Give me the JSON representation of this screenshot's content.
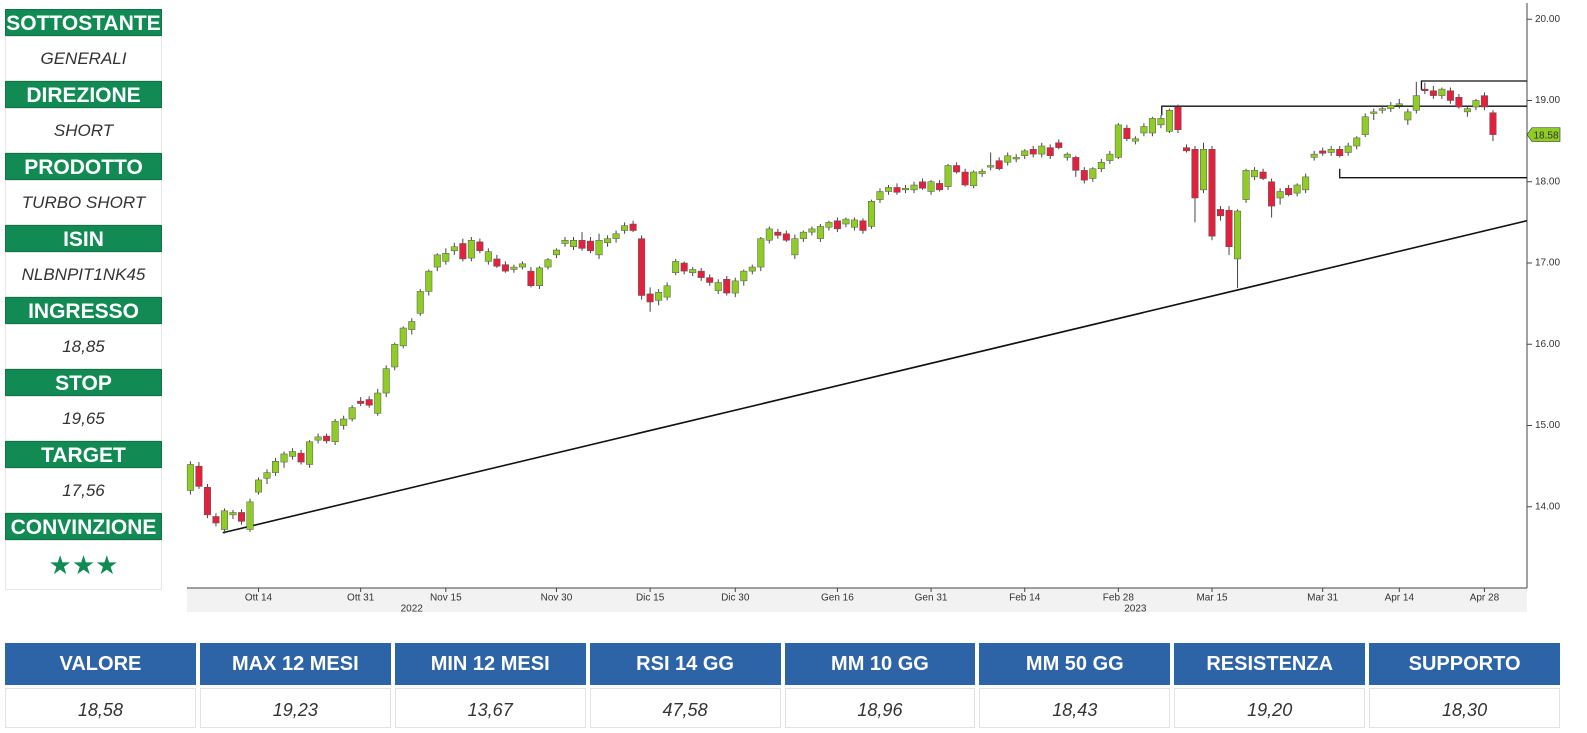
{
  "sidebar": [
    {
      "label": "SOTTOSTANTE",
      "value": "GENERALI"
    },
    {
      "label": "DIREZIONE",
      "value": "SHORT"
    },
    {
      "label": "PRODOTTO",
      "value": "TURBO SHORT"
    },
    {
      "label": "ISIN",
      "value": "NLBNPIT1NK45"
    },
    {
      "label": "INGRESSO",
      "value": "18,85"
    },
    {
      "label": "STOP",
      "value": "19,65"
    },
    {
      "label": "TARGET",
      "value": "17,56"
    },
    {
      "label": "CONVINZIONE",
      "value": "★★★"
    }
  ],
  "chart_data": {
    "type": "candlestick",
    "categories": [
      null,
      null,
      null,
      null,
      null,
      null,
      null,
      null,
      "Ott 14",
      null,
      null,
      null,
      null,
      null,
      null,
      null,
      null,
      null,
      null,
      null,
      "Ott 31",
      null,
      null,
      null,
      null,
      null,
      null,
      null,
      null,
      null,
      "Nov 15",
      null,
      null,
      null,
      null,
      null,
      null,
      null,
      null,
      null,
      null,
      null,
      null,
      "Nov 30",
      null,
      null,
      null,
      null,
      null,
      null,
      null,
      null,
      null,
      null,
      "Dic 15",
      null,
      null,
      null,
      null,
      null,
      null,
      null,
      null,
      null,
      "Dic 30",
      null,
      null,
      null,
      null,
      null,
      null,
      null,
      null,
      null,
      null,
      null,
      "Gen 16",
      null,
      null,
      null,
      null,
      null,
      null,
      null,
      null,
      null,
      null,
      "Gen 31",
      null,
      null,
      null,
      null,
      null,
      null,
      null,
      null,
      null,
      null,
      "Feb 14",
      null,
      null,
      null,
      null,
      null,
      null,
      null,
      null,
      null,
      null,
      "Feb 28",
      null,
      null,
      null,
      null,
      null,
      null,
      null,
      null,
      null,
      null,
      "Mar 15",
      null,
      null,
      null,
      null,
      null,
      null,
      null,
      null,
      null,
      null,
      null,
      null,
      "Mar 31",
      null,
      null,
      null,
      null,
      null,
      null,
      null,
      null,
      "Apr 14",
      null,
      null,
      null,
      null,
      null,
      null,
      null,
      null,
      null,
      "Apr 28",
      null
    ],
    "ohlc": [
      [
        14.2,
        14.56,
        14.15,
        14.52
      ],
      [
        14.5,
        14.55,
        14.22,
        14.25
      ],
      [
        14.24,
        14.28,
        13.86,
        13.9
      ],
      [
        13.88,
        13.92,
        13.76,
        13.8
      ],
      [
        13.72,
        13.98,
        13.67,
        13.95
      ],
      [
        13.9,
        13.96,
        13.85,
        13.93
      ],
      [
        13.93,
        13.97,
        13.78,
        13.82
      ],
      [
        13.72,
        14.1,
        13.69,
        14.06
      ],
      [
        14.18,
        14.36,
        14.15,
        14.33
      ],
      [
        14.35,
        14.46,
        14.28,
        14.42
      ],
      [
        14.42,
        14.6,
        14.38,
        14.56
      ],
      [
        14.55,
        14.68,
        14.48,
        14.65
      ],
      [
        14.62,
        14.72,
        14.58,
        14.68
      ],
      [
        14.66,
        14.7,
        14.52,
        14.55
      ],
      [
        14.52,
        14.82,
        14.48,
        14.8
      ],
      [
        14.82,
        14.9,
        14.78,
        14.86
      ],
      [
        14.87,
        14.9,
        14.78,
        14.81
      ],
      [
        14.8,
        15.08,
        14.76,
        15.05
      ],
      [
        15.0,
        15.12,
        14.95,
        15.08
      ],
      [
        15.08,
        15.25,
        15.05,
        15.22
      ],
      [
        15.3,
        15.35,
        15.24,
        15.27
      ],
      [
        15.32,
        15.36,
        15.22,
        15.25
      ],
      [
        15.15,
        15.45,
        15.12,
        15.4
      ],
      [
        15.4,
        15.74,
        15.35,
        15.7
      ],
      [
        15.72,
        16.02,
        15.68,
        16.0
      ],
      [
        15.98,
        16.22,
        15.95,
        16.2
      ],
      [
        16.18,
        16.32,
        16.12,
        16.28
      ],
      [
        16.38,
        16.68,
        16.35,
        16.65
      ],
      [
        16.65,
        16.92,
        16.6,
        16.9
      ],
      [
        16.95,
        17.12,
        16.9,
        17.1
      ],
      [
        17.02,
        17.18,
        16.98,
        17.12
      ],
      [
        17.15,
        17.25,
        17.1,
        17.2
      ],
      [
        17.24,
        17.3,
        17.02,
        17.05
      ],
      [
        17.06,
        17.32,
        17.02,
        17.28
      ],
      [
        17.26,
        17.3,
        17.12,
        17.15
      ],
      [
        17.02,
        17.18,
        16.98,
        17.14
      ],
      [
        17.05,
        17.1,
        16.94,
        16.96
      ],
      [
        16.98,
        17.02,
        16.88,
        16.9
      ],
      [
        16.92,
        16.98,
        16.88,
        16.95
      ],
      [
        16.95,
        17.02,
        16.92,
        16.99
      ],
      [
        16.9,
        16.95,
        16.7,
        16.72
      ],
      [
        16.72,
        16.96,
        16.68,
        16.94
      ],
      [
        16.95,
        17.06,
        16.92,
        17.04
      ],
      [
        17.1,
        17.18,
        17.06,
        17.16
      ],
      [
        17.24,
        17.32,
        17.2,
        17.28
      ],
      [
        17.2,
        17.32,
        17.16,
        17.28
      ],
      [
        17.28,
        17.38,
        17.15,
        17.18
      ],
      [
        17.27,
        17.32,
        17.12,
        17.15
      ],
      [
        17.1,
        17.36,
        17.05,
        17.28
      ],
      [
        17.25,
        17.34,
        17.2,
        17.3
      ],
      [
        17.3,
        17.4,
        17.25,
        17.36
      ],
      [
        17.4,
        17.5,
        17.36,
        17.46
      ],
      [
        17.48,
        17.52,
        17.38,
        17.4
      ],
      [
        17.3,
        17.34,
        16.55,
        16.6
      ],
      [
        16.62,
        16.7,
        16.4,
        16.52
      ],
      [
        16.54,
        16.68,
        16.48,
        16.64
      ],
      [
        16.58,
        16.76,
        16.54,
        16.72
      ],
      [
        16.88,
        17.05,
        16.85,
        17.02
      ],
      [
        17.0,
        17.02,
        16.86,
        16.9
      ],
      [
        16.88,
        16.95,
        16.84,
        16.92
      ],
      [
        16.9,
        16.94,
        16.78,
        16.82
      ],
      [
        16.82,
        16.86,
        16.72,
        16.76
      ],
      [
        16.66,
        16.8,
        16.62,
        16.76
      ],
      [
        16.8,
        16.84,
        16.6,
        16.63
      ],
      [
        16.63,
        16.82,
        16.58,
        16.78
      ],
      [
        16.78,
        16.92,
        16.72,
        16.9
      ],
      [
        16.9,
        16.98,
        16.86,
        16.95
      ],
      [
        16.95,
        17.32,
        16.9,
        17.3
      ],
      [
        17.28,
        17.45,
        17.24,
        17.42
      ],
      [
        17.38,
        17.42,
        17.3,
        17.34
      ],
      [
        17.36,
        17.4,
        17.26,
        17.28
      ],
      [
        17.1,
        17.35,
        17.05,
        17.3
      ],
      [
        17.3,
        17.4,
        17.26,
        17.38
      ],
      [
        17.38,
        17.45,
        17.34,
        17.42
      ],
      [
        17.3,
        17.48,
        17.26,
        17.45
      ],
      [
        17.44,
        17.52,
        17.4,
        17.5
      ],
      [
        17.52,
        17.56,
        17.38,
        17.42
      ],
      [
        17.48,
        17.56,
        17.44,
        17.54
      ],
      [
        17.44,
        17.56,
        17.4,
        17.53
      ],
      [
        17.52,
        17.55,
        17.36,
        17.4
      ],
      [
        17.45,
        17.78,
        17.42,
        17.76
      ],
      [
        17.78,
        17.92,
        17.74,
        17.88
      ],
      [
        17.88,
        17.96,
        17.84,
        17.93
      ],
      [
        17.93,
        17.98,
        17.84,
        17.87
      ],
      [
        17.9,
        17.96,
        17.86,
        17.92
      ],
      [
        17.9,
        18.0,
        17.86,
        17.96
      ],
      [
        18.0,
        18.04,
        17.9,
        17.92
      ],
      [
        17.88,
        18.02,
        17.84,
        18.0
      ],
      [
        17.98,
        18.02,
        17.88,
        17.9
      ],
      [
        17.94,
        18.22,
        17.9,
        18.2
      ],
      [
        18.2,
        18.24,
        18.1,
        18.12
      ],
      [
        18.12,
        18.16,
        17.94,
        17.96
      ],
      [
        17.95,
        18.14,
        17.92,
        18.12
      ],
      [
        18.1,
        18.16,
        18.06,
        18.13
      ],
      [
        18.18,
        18.36,
        18.14,
        18.2
      ],
      [
        18.26,
        18.3,
        18.14,
        18.16
      ],
      [
        18.24,
        18.36,
        18.2,
        18.32
      ],
      [
        18.28,
        18.34,
        18.24,
        18.3
      ],
      [
        18.32,
        18.4,
        18.28,
        18.38
      ],
      [
        18.4,
        18.44,
        18.3,
        18.34
      ],
      [
        18.34,
        18.48,
        18.3,
        18.44
      ],
      [
        18.42,
        18.46,
        18.28,
        18.32
      ],
      [
        18.48,
        18.52,
        18.4,
        18.42
      ],
      [
        18.3,
        18.36,
        18.26,
        18.34
      ],
      [
        18.3,
        18.32,
        18.06,
        18.14
      ],
      [
        18.14,
        18.18,
        17.98,
        18.02
      ],
      [
        18.04,
        18.18,
        18.0,
        18.16
      ],
      [
        18.16,
        18.28,
        18.12,
        18.24
      ],
      [
        18.26,
        18.38,
        18.22,
        18.34
      ],
      [
        18.3,
        18.72,
        18.28,
        18.7
      ],
      [
        18.66,
        18.7,
        18.5,
        18.53
      ],
      [
        18.5,
        18.56,
        18.46,
        18.53
      ],
      [
        18.6,
        18.72,
        18.56,
        18.68
      ],
      [
        18.6,
        18.8,
        18.56,
        18.78
      ],
      [
        18.7,
        18.82,
        18.66,
        18.78
      ],
      [
        18.62,
        18.9,
        18.6,
        18.88
      ],
      [
        18.92,
        18.95,
        18.6,
        18.64
      ],
      [
        18.42,
        18.46,
        18.36,
        18.38
      ],
      [
        18.4,
        18.44,
        17.5,
        17.8
      ],
      [
        17.9,
        18.48,
        17.86,
        18.4
      ],
      [
        18.4,
        18.44,
        17.28,
        17.33
      ],
      [
        17.66,
        17.7,
        17.52,
        17.58
      ],
      [
        17.65,
        17.7,
        17.1,
        17.2
      ],
      [
        17.05,
        17.66,
        16.69,
        17.64
      ],
      [
        17.78,
        18.16,
        17.74,
        18.14
      ],
      [
        18.06,
        18.18,
        18.02,
        18.14
      ],
      [
        18.12,
        18.16,
        18.02,
        18.04
      ],
      [
        18.0,
        18.04,
        17.56,
        17.7
      ],
      [
        17.8,
        17.92,
        17.72,
        17.88
      ],
      [
        17.92,
        17.96,
        17.82,
        17.84
      ],
      [
        17.86,
        17.98,
        17.82,
        17.96
      ],
      [
        17.9,
        18.1,
        17.86,
        18.06
      ],
      [
        18.3,
        18.38,
        18.26,
        18.34
      ],
      [
        18.38,
        18.42,
        18.32,
        18.35
      ],
      [
        18.36,
        18.44,
        18.32,
        18.4
      ],
      [
        18.4,
        18.44,
        18.3,
        18.32
      ],
      [
        18.36,
        18.48,
        18.32,
        18.44
      ],
      [
        18.44,
        18.56,
        18.4,
        18.54
      ],
      [
        18.58,
        18.84,
        18.55,
        18.8
      ],
      [
        18.84,
        18.9,
        18.76,
        18.86
      ],
      [
        18.88,
        18.94,
        18.84,
        18.9
      ],
      [
        18.9,
        18.98,
        18.86,
        18.94
      ],
      [
        18.94,
        19.02,
        18.9,
        18.96
      ],
      [
        18.76,
        18.9,
        18.7,
        18.86
      ],
      [
        18.88,
        19.23,
        18.84,
        19.06
      ],
      [
        19.14,
        19.22,
        19.08,
        19.12
      ],
      [
        19.12,
        19.18,
        19.02,
        19.06
      ],
      [
        19.06,
        19.16,
        19.02,
        19.14
      ],
      [
        19.12,
        19.16,
        18.96,
        19.0
      ],
      [
        19.04,
        19.08,
        18.9,
        18.92
      ],
      [
        18.86,
        18.92,
        18.8,
        18.9
      ],
      [
        18.92,
        19.02,
        18.88,
        19.0
      ],
      [
        19.06,
        19.1,
        18.88,
        18.92
      ],
      [
        18.85,
        18.88,
        18.5,
        18.58
      ]
    ],
    "up_color": "#8fcc26",
    "down_color": "#e2213f",
    "xlim": [
      -0.4,
      157
    ],
    "ylim": [
      13,
      20.2
    ],
    "yticks": [
      {
        "value": 14,
        "label": "14.00"
      },
      {
        "value": 15,
        "label": "15.00"
      },
      {
        "value": 16,
        "label": "16.00"
      },
      {
        "value": 17,
        "label": "17.00"
      },
      {
        "value": 18,
        "label": "18.00"
      },
      {
        "value": 19,
        "label": "19.00"
      },
      {
        "value": 20,
        "label": "20.00"
      }
    ],
    "year_ticks": [
      {
        "value": 26,
        "label": "2022"
      },
      {
        "value": 111,
        "label": "2023"
      }
    ],
    "price_tag": {
      "value": 18.58,
      "label": "18.58"
    },
    "levels": [
      {
        "start": 144.6,
        "value": 19.24
      },
      {
        "start": 114.1,
        "value": 18.93
      },
      {
        "start": 135,
        "value": 18.05
      }
    ],
    "trendline": {
      "from": [
        3.8,
        13.68
      ],
      "to": [
        157,
        17.52
      ]
    }
  },
  "table": {
    "headers": [
      "VALORE",
      "MAX 12 MESI",
      "MIN 12 MESI",
      "RSI 14 GG",
      "MM 10 GG",
      "MM 50 GG",
      "RESISTENZA",
      "SUPPORTO"
    ],
    "rows": [
      [
        "18,58",
        "19,23",
        "13,67",
        "47,58",
        "18,96",
        "18,43",
        "19,20",
        "18,30"
      ]
    ]
  }
}
